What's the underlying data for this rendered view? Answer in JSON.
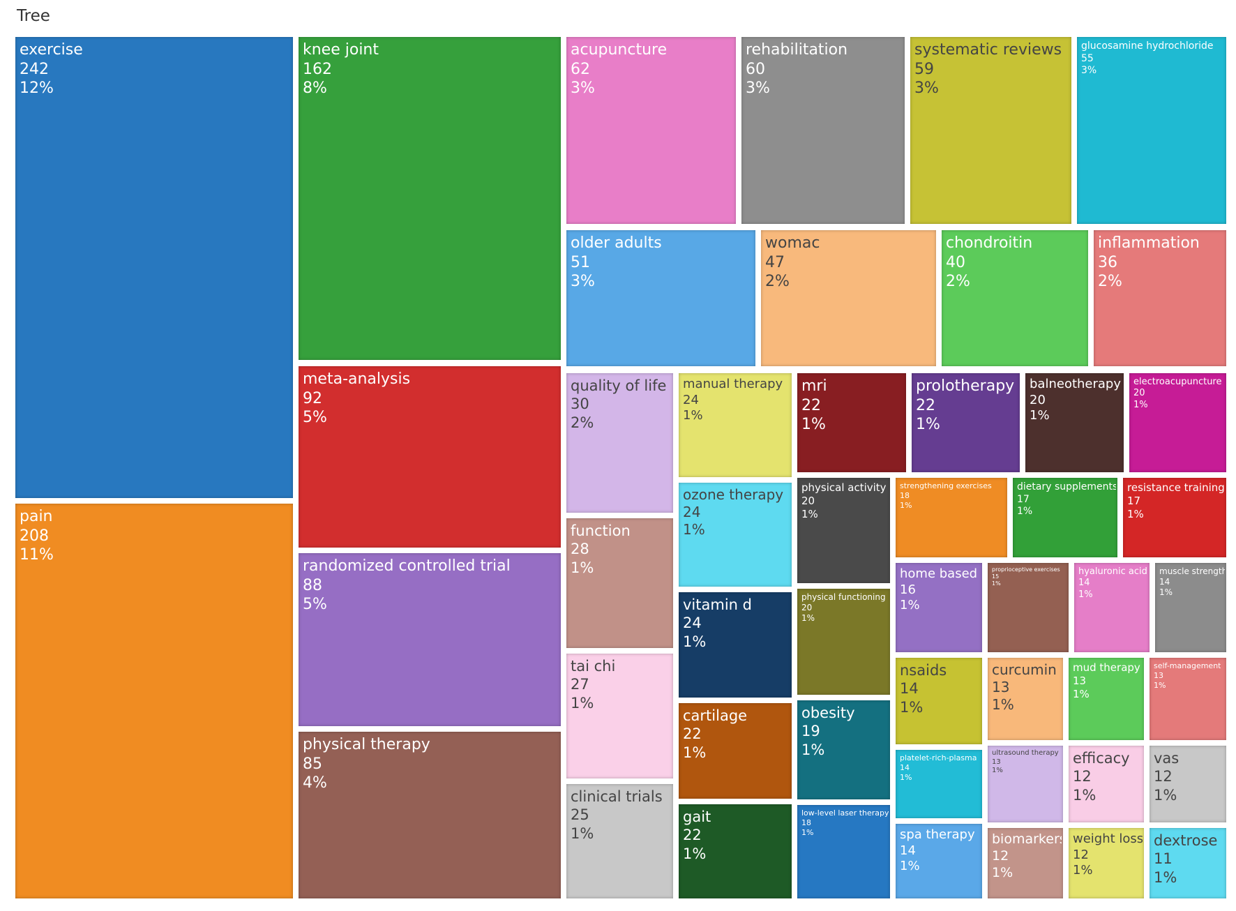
{
  "chart_data": {
    "type": "treemap",
    "title": "Tree",
    "items": [
      {
        "label": "exercise",
        "value": "242",
        "percent": "12%",
        "color": "#2878bf"
      },
      {
        "label": "pain",
        "value": "208",
        "percent": "11%",
        "color": "#f08c22"
      },
      {
        "label": "knee joint",
        "value": "162",
        "percent": "8%",
        "color": "#36a03c"
      },
      {
        "label": "meta-analysis",
        "value": "92",
        "percent": "5%",
        "color": "#d22e2e"
      },
      {
        "label": "randomized controlled trial",
        "value": "88",
        "percent": "5%",
        "color": "#966ec4"
      },
      {
        "label": "physical therapy",
        "value": "85",
        "percent": "4%",
        "color": "#946055"
      },
      {
        "label": "acupuncture",
        "value": "62",
        "percent": "3%",
        "color": "#e87ec8"
      },
      {
        "label": "rehabilitation",
        "value": "60",
        "percent": "3%",
        "color": "#8e8e8e"
      },
      {
        "label": "systematic reviews",
        "value": "59",
        "percent": "3%",
        "color": "#c6c235"
      },
      {
        "label": "glucosamine hydrochloride",
        "value": "55",
        "percent": "3%",
        "color": "#1fbad2"
      },
      {
        "label": "older adults",
        "value": "51",
        "percent": "3%",
        "color": "#58a8e6"
      },
      {
        "label": "womac",
        "value": "47",
        "percent": "2%",
        "color": "#f8b97c"
      },
      {
        "label": "chondroitin",
        "value": "40",
        "percent": "2%",
        "color": "#5ccb5a"
      },
      {
        "label": "inflammation",
        "value": "36",
        "percent": "2%",
        "color": "#e57a7a"
      },
      {
        "label": "quality of life",
        "value": "30",
        "percent": "2%",
        "color": "#d3b6e8"
      },
      {
        "label": "function",
        "value": "28",
        "percent": "1%",
        "color": "#c19188"
      },
      {
        "label": "tai chi",
        "value": "27",
        "percent": "1%",
        "color": "#fad0e8"
      },
      {
        "label": "clinical trials",
        "value": "25",
        "percent": "1%",
        "color": "#c8c8c8"
      },
      {
        "label": "manual therapy",
        "value": "24",
        "percent": "1%",
        "color": "#e4e36e"
      },
      {
        "label": "ozone therapy",
        "value": "24",
        "percent": "1%",
        "color": "#5edaf0"
      },
      {
        "label": "vitamin d",
        "value": "24",
        "percent": "1%",
        "color": "#163d66"
      },
      {
        "label": "cartilage",
        "value": "22",
        "percent": "1%",
        "color": "#b0560e"
      },
      {
        "label": "gait",
        "value": "22",
        "percent": "1%",
        "color": "#1e5a26"
      },
      {
        "label": "mri",
        "value": "22",
        "percent": "1%",
        "color": "#881e22"
      },
      {
        "label": "prolotherapy",
        "value": "22",
        "percent": "1%",
        "color": "#653d91"
      },
      {
        "label": "balneotherapy",
        "value": "20",
        "percent": "1%",
        "color": "#4d302d"
      },
      {
        "label": "electroacupuncture",
        "value": "20",
        "percent": "1%",
        "color": "#c61c96"
      },
      {
        "label": "physical activity",
        "value": "20",
        "percent": "1%",
        "color": "#4a4a4a"
      },
      {
        "label": "physical functioning",
        "value": "20",
        "percent": "1%",
        "color": "#7b7828"
      },
      {
        "label": "obesity",
        "value": "19",
        "percent": "1%",
        "color": "#147080"
      },
      {
        "label": "low-level laser therapy",
        "value": "18",
        "percent": "1%",
        "color": "#2678c2"
      },
      {
        "label": "strengthening exercises",
        "value": "18",
        "percent": "1%",
        "color": "#ef8c24"
      },
      {
        "label": "dietary supplements",
        "value": "17",
        "percent": "1%",
        "color": "#32a038"
      },
      {
        "label": "resistance training",
        "value": "17",
        "percent": "1%",
        "color": "#d42626"
      },
      {
        "label": "home based",
        "value": "16",
        "percent": "1%",
        "color": "#9470c4"
      },
      {
        "label": "proprioceptive exercises",
        "value": "15",
        "percent": "1%",
        "color": "#946052"
      },
      {
        "label": "hyaluronic acid",
        "value": "14",
        "percent": "1%",
        "color": "#e57ec8"
      },
      {
        "label": "muscle strength",
        "value": "14",
        "percent": "1%",
        "color": "#8c8c8c"
      },
      {
        "label": "nsaids",
        "value": "14",
        "percent": "1%",
        "color": "#c6c232"
      },
      {
        "label": "platelet-rich-plasma",
        "value": "14",
        "percent": "1%",
        "color": "#22bcd6"
      },
      {
        "label": "spa therapy",
        "value": "14",
        "percent": "1%",
        "color": "#5aa8e8"
      },
      {
        "label": "curcumin",
        "value": "13",
        "percent": "1%",
        "color": "#f8b87a"
      },
      {
        "label": "mud therapy",
        "value": "13",
        "percent": "1%",
        "color": "#5ccb5a"
      },
      {
        "label": "self-management",
        "value": "13",
        "percent": "1%",
        "color": "#e47a7a"
      },
      {
        "label": "ultrasound therapy",
        "value": "13",
        "percent": "1%",
        "color": "#d0b8e8"
      },
      {
        "label": "efficacy",
        "value": "12",
        "percent": "1%",
        "color": "#f9cde6"
      },
      {
        "label": "vas",
        "value": "12",
        "percent": "1%",
        "color": "#c8c8c8"
      },
      {
        "label": "biomarkers",
        "value": "12",
        "percent": "1%",
        "color": "#c2948a"
      },
      {
        "label": "weight loss",
        "value": "12",
        "percent": "1%",
        "color": "#e4e36e"
      },
      {
        "label": "dextrose",
        "value": "11",
        "percent": "1%",
        "color": "#5edaf0"
      }
    ]
  }
}
